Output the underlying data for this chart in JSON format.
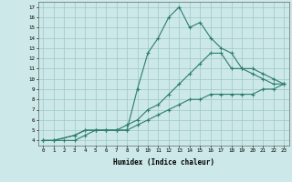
{
  "line1": {
    "x": [
      0,
      1,
      3,
      4,
      5,
      6,
      7,
      8,
      9,
      10,
      11,
      12,
      13,
      14,
      15,
      16,
      17,
      18,
      19,
      20,
      21,
      22,
      23
    ],
    "y": [
      4,
      4,
      4.5,
      5,
      5,
      5,
      5,
      5,
      9,
      12.5,
      14,
      16,
      17,
      15,
      15.5,
      14,
      13,
      12.5,
      11,
      10.5,
      10,
      9.5,
      9.5
    ]
  },
  "line2": {
    "x": [
      0,
      1,
      3,
      4,
      5,
      6,
      7,
      8,
      9,
      10,
      11,
      12,
      13,
      14,
      15,
      16,
      17,
      18,
      19,
      20,
      21,
      22,
      23
    ],
    "y": [
      4,
      4,
      4.5,
      5,
      5,
      5,
      5,
      5.5,
      6,
      7,
      7.5,
      8.5,
      9.5,
      10.5,
      11.5,
      12.5,
      12.5,
      11,
      11,
      11,
      10.5,
      10,
      9.5
    ]
  },
  "line3": {
    "x": [
      0,
      1,
      2,
      3,
      4,
      5,
      6,
      7,
      8,
      9,
      10,
      11,
      12,
      13,
      14,
      15,
      16,
      17,
      18,
      19,
      20,
      21,
      22,
      23
    ],
    "y": [
      4,
      4,
      4,
      4,
      4.5,
      5,
      5,
      5,
      5,
      5.5,
      6,
      6.5,
      7,
      7.5,
      8,
      8,
      8.5,
      8.5,
      8.5,
      8.5,
      8.5,
      9,
      9,
      9.5
    ]
  },
  "color": "#2e7d6e",
  "bg_color": "#cce8e8",
  "grid_color": "#9ec8c8",
  "xlabel": "Humidex (Indice chaleur)",
  "xlim": [
    -0.5,
    23.5
  ],
  "ylim": [
    3.5,
    17.5
  ],
  "xticks": [
    0,
    1,
    2,
    3,
    4,
    5,
    6,
    7,
    8,
    9,
    10,
    11,
    12,
    13,
    14,
    15,
    16,
    17,
    18,
    19,
    20,
    21,
    22,
    23
  ],
  "yticks": [
    4,
    5,
    6,
    7,
    8,
    9,
    10,
    11,
    12,
    13,
    14,
    15,
    16,
    17
  ],
  "marker": "+"
}
